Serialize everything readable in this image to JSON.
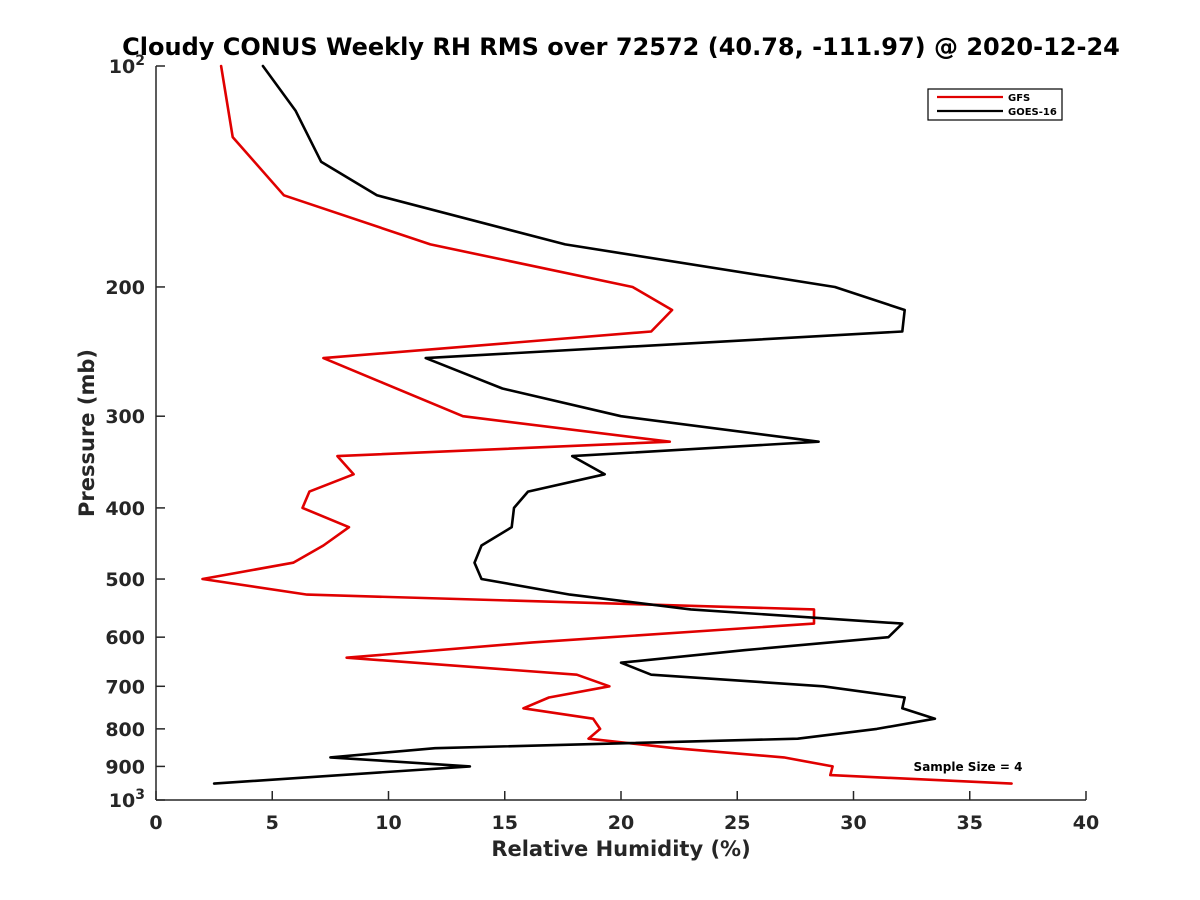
{
  "chart_data": {
    "type": "line",
    "title": "Cloudy CONUS Weekly RH RMS over 72572 (40.78, -111.97) @ 2020-12-24",
    "xlabel": "Relative Humidity (%)",
    "ylabel": "Pressure (mb)",
    "xlim": [
      0,
      40
    ],
    "ylim": [
      100,
      1000
    ],
    "yscale": "log",
    "y_reversed": true,
    "xticks": [
      0,
      5,
      10,
      15,
      20,
      25,
      30,
      35,
      40
    ],
    "yticks": [
      {
        "value": 100,
        "base": "10",
        "exp": "2"
      },
      {
        "value": 200,
        "label": "200"
      },
      {
        "value": 300,
        "label": "300"
      },
      {
        "value": 400,
        "label": "400"
      },
      {
        "value": 500,
        "label": "500"
      },
      {
        "value": 600,
        "label": "600"
      },
      {
        "value": 700,
        "label": "700"
      },
      {
        "value": 800,
        "label": "800"
      },
      {
        "value": 900,
        "label": "900"
      },
      {
        "value": 1000,
        "base": "10",
        "exp": "3"
      }
    ],
    "legend_position": "top-right",
    "annotation": "Sample Size = 4",
    "series": [
      {
        "name": "GFS",
        "color": "#e00000",
        "points": [
          [
            2.8,
            100
          ],
          [
            3.3,
            125
          ],
          [
            5.5,
            150
          ],
          [
            11.8,
            175
          ],
          [
            20.5,
            200
          ],
          [
            22.2,
            215
          ],
          [
            21.3,
            230
          ],
          [
            7.2,
            250
          ],
          [
            13.2,
            300
          ],
          [
            22.1,
            325
          ],
          [
            7.8,
            340
          ],
          [
            8.5,
            360
          ],
          [
            6.6,
            380
          ],
          [
            6.3,
            400
          ],
          [
            8.3,
            425
          ],
          [
            7.2,
            450
          ],
          [
            5.9,
            475
          ],
          [
            2.0,
            500
          ],
          [
            6.5,
            525
          ],
          [
            28.3,
            550
          ],
          [
            28.3,
            575
          ],
          [
            16.2,
            610
          ],
          [
            8.2,
            640
          ],
          [
            18.1,
            675
          ],
          [
            19.5,
            700
          ],
          [
            16.9,
            725
          ],
          [
            15.8,
            750
          ],
          [
            18.8,
            775
          ],
          [
            19.1,
            800
          ],
          [
            18.6,
            825
          ],
          [
            22.3,
            850
          ],
          [
            27.0,
            875
          ],
          [
            29.1,
            900
          ],
          [
            29.0,
            925
          ],
          [
            36.8,
            950
          ]
        ]
      },
      {
        "name": "GOES-16",
        "color": "#000000",
        "points": [
          [
            4.6,
            100
          ],
          [
            6.0,
            115
          ],
          [
            7.1,
            135
          ],
          [
            9.5,
            150
          ],
          [
            17.6,
            175
          ],
          [
            29.2,
            200
          ],
          [
            32.2,
            215
          ],
          [
            32.1,
            230
          ],
          [
            11.6,
            250
          ],
          [
            14.9,
            275
          ],
          [
            20.0,
            300
          ],
          [
            28.5,
            325
          ],
          [
            17.9,
            340
          ],
          [
            19.3,
            360
          ],
          [
            16.0,
            380
          ],
          [
            15.4,
            400
          ],
          [
            15.3,
            425
          ],
          [
            14.0,
            450
          ],
          [
            13.7,
            475
          ],
          [
            14.0,
            500
          ],
          [
            17.8,
            525
          ],
          [
            23.0,
            550
          ],
          [
            32.1,
            575
          ],
          [
            31.5,
            600
          ],
          [
            25.3,
            625
          ],
          [
            20.0,
            650
          ],
          [
            21.3,
            675
          ],
          [
            28.7,
            700
          ],
          [
            32.2,
            725
          ],
          [
            32.1,
            750
          ],
          [
            33.5,
            775
          ],
          [
            31.0,
            800
          ],
          [
            27.6,
            825
          ],
          [
            12.0,
            850
          ],
          [
            7.5,
            875
          ],
          [
            13.5,
            900
          ],
          [
            2.5,
            950
          ]
        ]
      }
    ]
  }
}
